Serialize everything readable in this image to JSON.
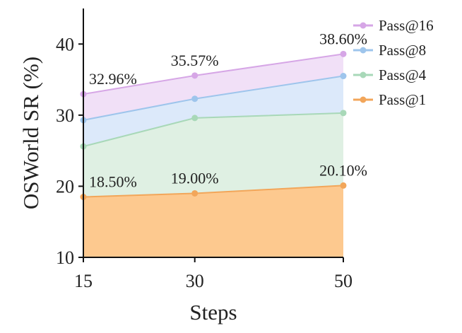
{
  "chart_data": {
    "type": "area",
    "x": [
      15,
      30,
      50
    ],
    "xticks": [
      "15",
      "30",
      "50"
    ],
    "xlabel": "Steps",
    "ylabel": "OSWorld SR (%)",
    "ylim": [
      10,
      45
    ],
    "yticks": [
      10,
      20,
      30,
      40
    ],
    "ytick_labels": [
      "10",
      "20",
      "30",
      "40"
    ],
    "grid": false,
    "legend_position": "top-right",
    "series": [
      {
        "name": "Pass@16",
        "values": [
          32.96,
          35.57,
          38.6
        ],
        "color": "#d6a6e6",
        "fill": "#f1e0f7",
        "labels": [
          "32.96%",
          "35.57%",
          "38.60%"
        ]
      },
      {
        "name": "Pass@8",
        "values": [
          29.3,
          32.3,
          35.5
        ],
        "color": "#9ec5ec",
        "fill": "#dce9fa"
      },
      {
        "name": "Pass@4",
        "values": [
          25.6,
          29.6,
          30.3
        ],
        "color": "#a8d8b8",
        "fill": "#dff0e3"
      },
      {
        "name": "Pass@1",
        "values": [
          18.5,
          19.0,
          20.1
        ],
        "color": "#f2a65a",
        "fill": "#fdc98f",
        "labels": [
          "18.50%",
          "19.00%",
          "20.10%"
        ]
      }
    ]
  }
}
